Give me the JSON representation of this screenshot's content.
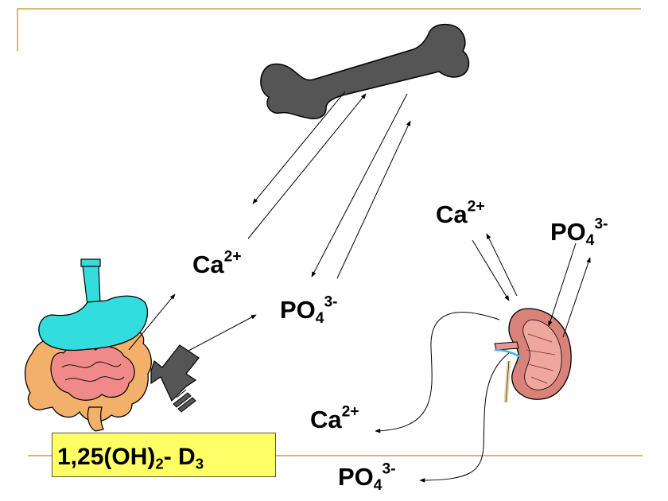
{
  "labels": {
    "ca_gut": {
      "base": "Ca",
      "sup": "2+"
    },
    "po4_gut": {
      "base": "PO",
      "sub": "4",
      "sup": "3-"
    },
    "ca_kidney_top": {
      "base": "Ca",
      "sup": "2+"
    },
    "po4_kidney_top": {
      "base": "PO",
      "sub": "4",
      "sup": "3-"
    },
    "ca_excreted": {
      "base": "Ca",
      "sup": "2+"
    },
    "po4_excreted": {
      "base": "PO",
      "sub": "4",
      "sup": "3-"
    }
  },
  "hormone": {
    "part1": "1,25(OH)",
    "sub": "2",
    "part2": "- D",
    "sub2": "3"
  },
  "colors": {
    "bone": "#555555",
    "stomach": "#33dddd",
    "intestine_small": "#f08a8a",
    "intestine_large": "#f3b06b",
    "hormone_box": "#ffff66",
    "slide_rule": "#c8a23c",
    "kidney": "#d9827a"
  },
  "icons": [
    "bone-icon",
    "digestive-tract-icon",
    "kidney-icon",
    "up-arrow-icon"
  ]
}
